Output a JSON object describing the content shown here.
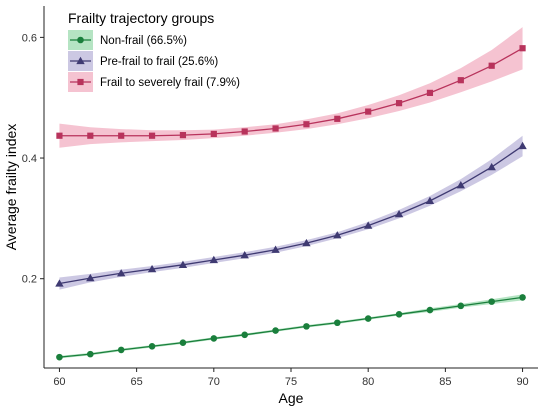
{
  "chart_data": {
    "type": "line",
    "xlabel": "Age",
    "ylabel": "Average frailty index",
    "xlim": [
      59,
      91
    ],
    "ylim": [
      0.052,
      0.652
    ],
    "xticks": [
      60,
      65,
      70,
      75,
      80,
      85,
      90
    ],
    "yticks": [
      0.2,
      0.4,
      0.6
    ],
    "ytick_labels": [
      "0.2",
      "0.4",
      "0.6"
    ],
    "grid": false,
    "legend": {
      "title": "Frailty trajectory groups",
      "position": "top-left"
    },
    "x": [
      60,
      62,
      64,
      66,
      68,
      70,
      72,
      74,
      76,
      78,
      80,
      82,
      84,
      86,
      88,
      90
    ],
    "series": [
      {
        "name": "Non-frail (66.5%)",
        "marker": "circle",
        "color": "#1a7f3c",
        "band_color": "#5cc47a",
        "values": [
          0.07,
          0.075,
          0.082,
          0.088,
          0.094,
          0.101,
          0.107,
          0.114,
          0.121,
          0.127,
          0.134,
          0.141,
          0.148,
          0.155,
          0.162,
          0.169
        ],
        "lower": [
          0.068,
          0.073,
          0.08,
          0.086,
          0.092,
          0.099,
          0.105,
          0.112,
          0.119,
          0.125,
          0.132,
          0.139,
          0.145,
          0.152,
          0.158,
          0.164
        ],
        "upper": [
          0.072,
          0.077,
          0.084,
          0.09,
          0.096,
          0.103,
          0.109,
          0.116,
          0.123,
          0.129,
          0.136,
          0.143,
          0.151,
          0.158,
          0.166,
          0.174
        ]
      },
      {
        "name": "Pre-frail to frail (25.6%)",
        "marker": "triangle",
        "color": "#3f3a72",
        "band_color": "#8f86c0",
        "values": [
          0.192,
          0.201,
          0.209,
          0.216,
          0.223,
          0.231,
          0.239,
          0.248,
          0.259,
          0.272,
          0.288,
          0.307,
          0.329,
          0.355,
          0.385,
          0.42
        ],
        "lower": [
          0.182,
          0.194,
          0.203,
          0.211,
          0.218,
          0.226,
          0.234,
          0.243,
          0.254,
          0.267,
          0.282,
          0.3,
          0.321,
          0.345,
          0.372,
          0.403
        ],
        "upper": [
          0.202,
          0.208,
          0.215,
          0.221,
          0.228,
          0.236,
          0.244,
          0.253,
          0.264,
          0.277,
          0.294,
          0.314,
          0.337,
          0.365,
          0.398,
          0.437
        ]
      },
      {
        "name": "Frail to severely frail (7.9%)",
        "marker": "square",
        "color": "#b8335c",
        "band_color": "#e87b98",
        "values": [
          0.437,
          0.437,
          0.437,
          0.437,
          0.438,
          0.44,
          0.444,
          0.449,
          0.456,
          0.465,
          0.477,
          0.491,
          0.508,
          0.529,
          0.553,
          0.582
        ],
        "lower": [
          0.417,
          0.423,
          0.426,
          0.428,
          0.43,
          0.433,
          0.437,
          0.442,
          0.448,
          0.456,
          0.466,
          0.478,
          0.492,
          0.509,
          0.527,
          0.547
        ],
        "upper": [
          0.457,
          0.451,
          0.448,
          0.446,
          0.446,
          0.447,
          0.451,
          0.456,
          0.464,
          0.474,
          0.488,
          0.504,
          0.524,
          0.549,
          0.579,
          0.617
        ]
      }
    ]
  }
}
